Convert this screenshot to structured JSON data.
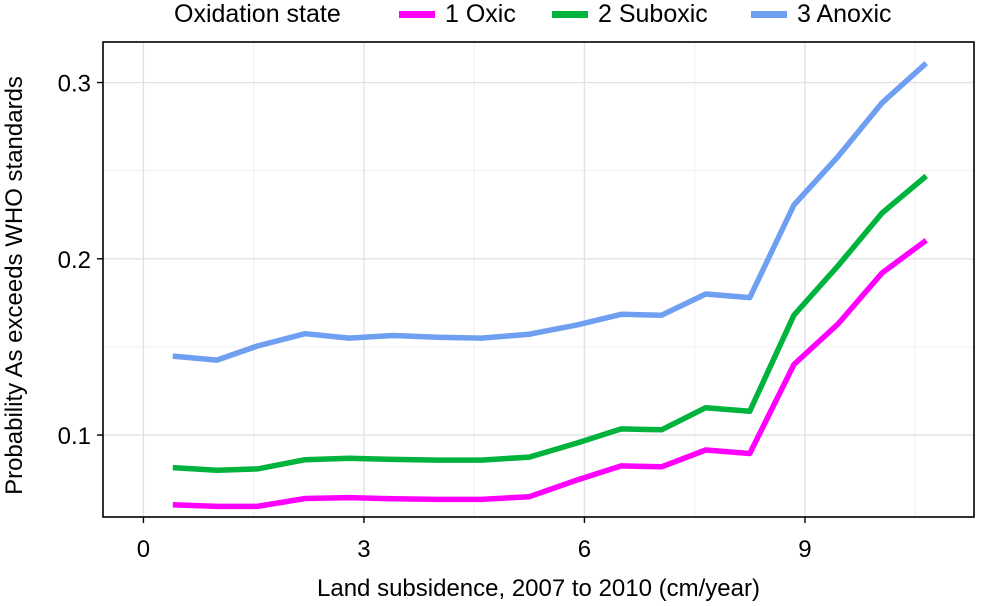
{
  "chart_data": {
    "type": "line",
    "title": "",
    "legend": {
      "title": "Oxidation state",
      "placement": "top"
    },
    "xlabel": "Land subsidence, 2007 to 2010 (cm/year)",
    "ylabel": "Probability As exceeds WHO standards",
    "xlim": [
      -0.55,
      11.3
    ],
    "ylim": [
      0.0535,
      0.323
    ],
    "x_ticks": [
      0,
      3,
      6,
      9
    ],
    "x_tick_labels": [
      "0",
      "3",
      "6",
      "9"
    ],
    "y_ticks": [
      0.1,
      0.2,
      0.3
    ],
    "y_tick_labels": [
      "0.1",
      "0.2",
      "0.3"
    ],
    "grid": true,
    "x": [
      0.4,
      1.0,
      1.55,
      2.2,
      2.8,
      3.4,
      4.0,
      4.6,
      5.25,
      5.9,
      6.5,
      7.05,
      7.65,
      8.25,
      8.85,
      9.45,
      10.05,
      10.65
    ],
    "series": [
      {
        "name": "1 Oxic",
        "color": "#ff00ff",
        "values": [
          0.0605,
          0.0595,
          0.0595,
          0.064,
          0.0645,
          0.0638,
          0.0635,
          0.0635,
          0.065,
          0.0745,
          0.0825,
          0.082,
          0.0915,
          0.0895,
          0.14,
          0.163,
          0.192,
          0.2105
        ]
      },
      {
        "name": "2 Suboxic",
        "color": "#00b33c",
        "values": [
          0.0815,
          0.08,
          0.0808,
          0.086,
          0.0868,
          0.0862,
          0.0858,
          0.0858,
          0.0875,
          0.0955,
          0.1035,
          0.103,
          0.1155,
          0.1135,
          0.168,
          0.196,
          0.226,
          0.247
        ]
      },
      {
        "name": "3 Anoxic",
        "color": "#6f9ff0",
        "values": [
          0.1448,
          0.1425,
          0.1505,
          0.1575,
          0.155,
          0.1565,
          0.1555,
          0.155,
          0.1572,
          0.1625,
          0.1685,
          0.168,
          0.18,
          0.178,
          0.2305,
          0.258,
          0.2885,
          0.311
        ]
      }
    ]
  }
}
